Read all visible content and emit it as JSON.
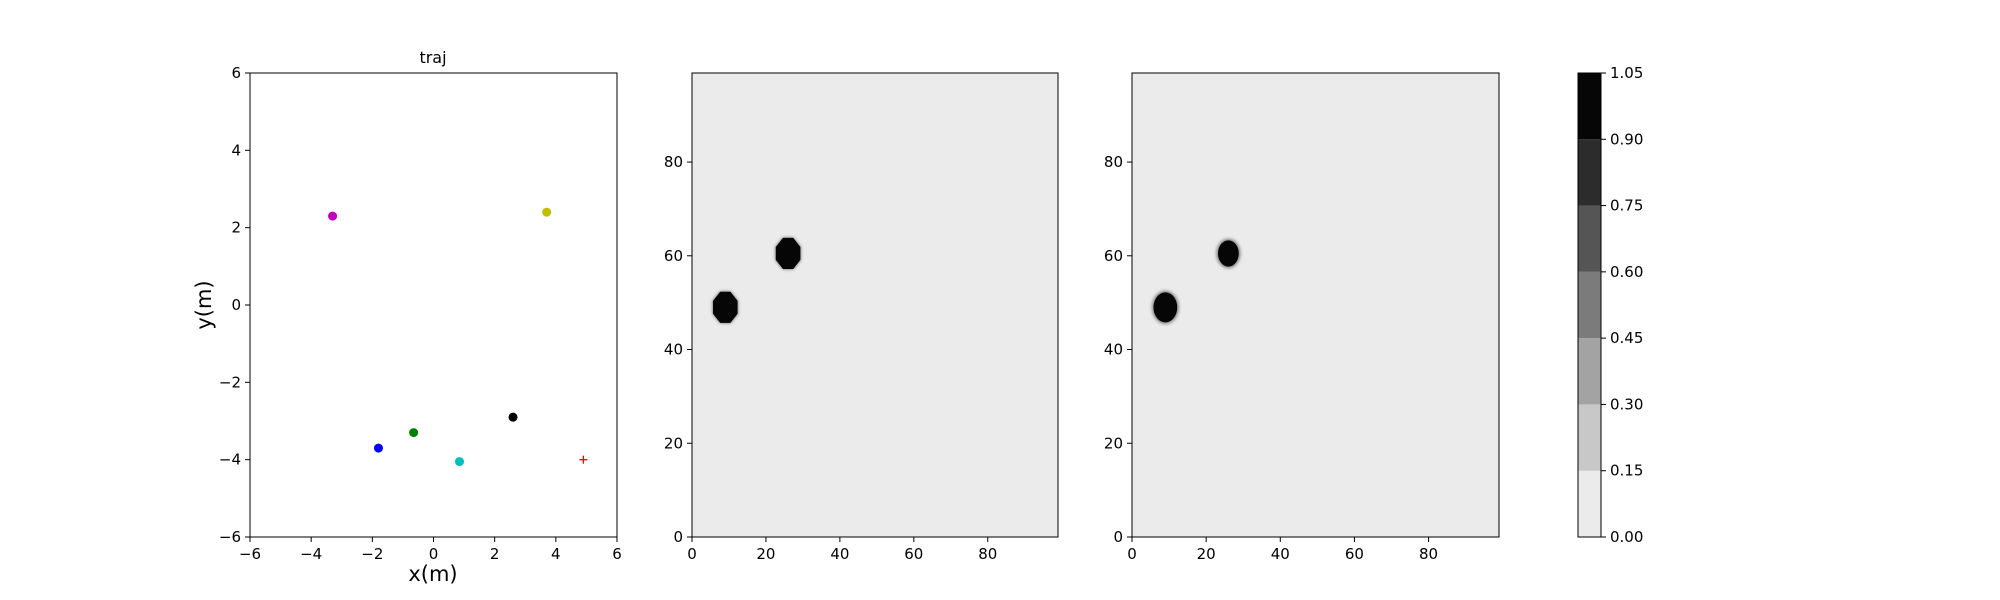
{
  "chart_data": [
    {
      "type": "scatter",
      "title": "traj",
      "xlabel": "x(m)",
      "ylabel": "y(m)",
      "xlim": [
        -6,
        6
      ],
      "ylim": [
        -6,
        6
      ],
      "xticks": [
        -6,
        -4,
        -2,
        0,
        2,
        4,
        6
      ],
      "yticks": [
        -6,
        -4,
        -2,
        0,
        2,
        4,
        6
      ],
      "grid": false,
      "points": [
        {
          "x": -3.3,
          "y": 2.3,
          "color": "#bf00bf",
          "marker": "circle"
        },
        {
          "x": 3.7,
          "y": 2.4,
          "color": "#bfbf00",
          "marker": "circle"
        },
        {
          "x": 2.6,
          "y": -2.9,
          "color": "#000000",
          "marker": "circle"
        },
        {
          "x": -0.65,
          "y": -3.3,
          "color": "#008000",
          "marker": "circle"
        },
        {
          "x": -1.8,
          "y": -3.7,
          "color": "#0000ff",
          "marker": "circle"
        },
        {
          "x": 0.85,
          "y": -4.05,
          "color": "#00bfbf",
          "marker": "circle"
        },
        {
          "x": 4.9,
          "y": -4.0,
          "color": "#ff0000",
          "marker": "plus"
        }
      ]
    },
    {
      "type": "heatmap",
      "title": "",
      "xlim": [
        0,
        99
      ],
      "ylim": [
        0,
        99
      ],
      "xticks": [
        0,
        20,
        40,
        60,
        80
      ],
      "yticks": [
        0,
        20,
        40,
        60,
        80
      ],
      "background_value": 0.0,
      "blobs": [
        {
          "cx": 9,
          "cy": 49,
          "r": 3.6,
          "value": 1.0,
          "shape": "octagon"
        },
        {
          "cx": 26,
          "cy": 60.5,
          "r": 3.6,
          "value": 1.0,
          "shape": "octagon"
        }
      ]
    },
    {
      "type": "heatmap",
      "title": "",
      "xlim": [
        0,
        99
      ],
      "ylim": [
        0,
        99
      ],
      "xticks": [
        0,
        20,
        40,
        60,
        80
      ],
      "yticks": [
        0,
        20,
        40,
        60,
        80
      ],
      "background_value": 0.0,
      "blobs": [
        {
          "cx": 9,
          "cy": 49,
          "r": 3.2,
          "value": 1.0,
          "shape": "round"
        },
        {
          "cx": 26,
          "cy": 60.5,
          "r": 2.8,
          "value": 1.0,
          "shape": "round"
        }
      ]
    }
  ],
  "colorbar": {
    "ticks": [
      "0.00",
      "0.15",
      "0.30",
      "0.45",
      "0.60",
      "0.75",
      "0.90",
      "1.05"
    ],
    "levels": [
      0.0,
      0.15,
      0.3,
      0.45,
      0.6,
      0.75,
      0.9,
      1.05
    ],
    "colors": [
      "#ebebeb",
      "#c8c8c8",
      "#a3a3a3",
      "#7b7b7b",
      "#555555",
      "#2c2c2c",
      "#060606"
    ]
  }
}
